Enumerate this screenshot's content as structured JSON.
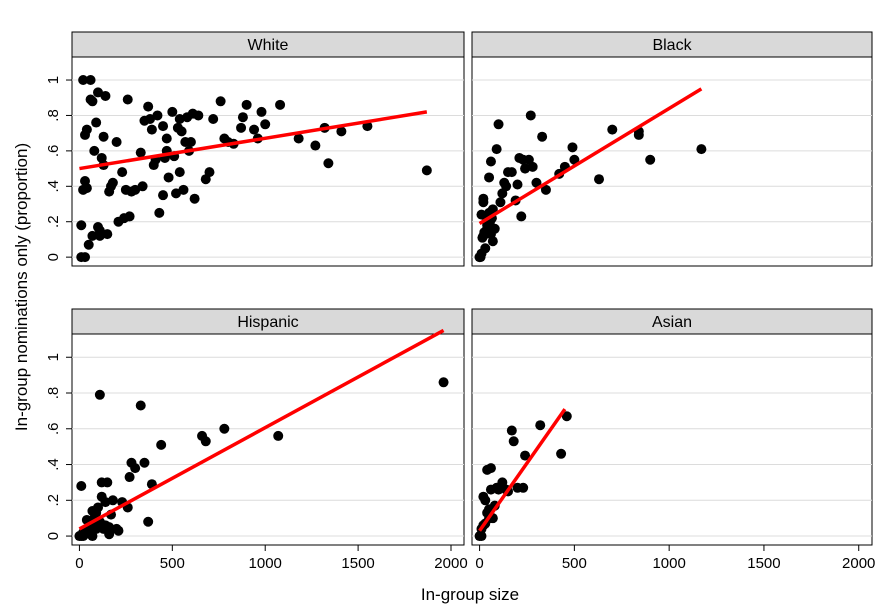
{
  "chart_data": {
    "type": "scatter",
    "xlabel": "In-group size",
    "ylabel": "In-group nominations only (proportion)",
    "xlim": [
      -40,
      2070
    ],
    "ylim": [
      -0.05,
      1.13
    ],
    "x_ticks": [
      0,
      500,
      1000,
      1500,
      2000
    ],
    "x_tick_labels": [
      "0",
      "500",
      "1000",
      "1500",
      "2000"
    ],
    "y_ticks": [
      0,
      0.2,
      0.4,
      0.6,
      0.8,
      1
    ],
    "y_tick_labels": [
      "0",
      ".2",
      ".4",
      ".6",
      ".8",
      "1"
    ],
    "grid": true,
    "colors": {
      "points": "#000000",
      "fit_line": "#ff0000",
      "strip": "#d9d9d9"
    },
    "panels": [
      {
        "title": "White",
        "fit_line": [
          [
            0,
            0.5
          ],
          [
            1870,
            0.82
          ]
        ],
        "points": [
          [
            20,
            1.0
          ],
          [
            60,
            1.0
          ],
          [
            10,
            0.0
          ],
          [
            30,
            0.0
          ],
          [
            10,
            0.18
          ],
          [
            20,
            0.38
          ],
          [
            30,
            0.43
          ],
          [
            40,
            0.39
          ],
          [
            50,
            0.07
          ],
          [
            70,
            0.12
          ],
          [
            100,
            0.17
          ],
          [
            110,
            0.15
          ],
          [
            110,
            0.12
          ],
          [
            130,
            0.52
          ],
          [
            150,
            0.13
          ],
          [
            160,
            0.37
          ],
          [
            170,
            0.4
          ],
          [
            180,
            0.42
          ],
          [
            200,
            0.65
          ],
          [
            210,
            0.2
          ],
          [
            230,
            0.48
          ],
          [
            240,
            0.22
          ],
          [
            250,
            0.38
          ],
          [
            270,
            0.23
          ],
          [
            280,
            0.37
          ],
          [
            300,
            0.38
          ],
          [
            330,
            0.59
          ],
          [
            340,
            0.4
          ],
          [
            370,
            0.85
          ],
          [
            380,
            0.78
          ],
          [
            390,
            0.72
          ],
          [
            400,
            0.52
          ],
          [
            410,
            0.55
          ],
          [
            420,
            0.8
          ],
          [
            430,
            0.25
          ],
          [
            450,
            0.35
          ],
          [
            450,
            0.74
          ],
          [
            460,
            0.56
          ],
          [
            470,
            0.6
          ],
          [
            480,
            0.45
          ],
          [
            500,
            0.82
          ],
          [
            510,
            0.57
          ],
          [
            520,
            0.36
          ],
          [
            530,
            0.73
          ],
          [
            540,
            0.78
          ],
          [
            550,
            0.71
          ],
          [
            560,
            0.38
          ],
          [
            570,
            0.65
          ],
          [
            580,
            0.79
          ],
          [
            600,
            0.65
          ],
          [
            610,
            0.81
          ],
          [
            620,
            0.33
          ],
          [
            640,
            0.8
          ],
          [
            680,
            0.44
          ],
          [
            700,
            0.48
          ],
          [
            720,
            0.78
          ],
          [
            760,
            0.88
          ],
          [
            780,
            0.67
          ],
          [
            800,
            0.65
          ],
          [
            830,
            0.64
          ],
          [
            870,
            0.73
          ],
          [
            880,
            0.79
          ],
          [
            900,
            0.86
          ],
          [
            940,
            0.72
          ],
          [
            960,
            0.67
          ],
          [
            980,
            0.82
          ],
          [
            1000,
            0.75
          ],
          [
            1080,
            0.86
          ],
          [
            1180,
            0.67
          ],
          [
            1270,
            0.63
          ],
          [
            1320,
            0.73
          ],
          [
            1340,
            0.53
          ],
          [
            1410,
            0.71
          ],
          [
            1550,
            0.74
          ],
          [
            1870,
            0.49
          ],
          [
            30,
            0.69
          ],
          [
            40,
            0.72
          ],
          [
            60,
            0.89
          ],
          [
            70,
            0.88
          ],
          [
            80,
            0.6
          ],
          [
            90,
            0.76
          ],
          [
            100,
            0.93
          ],
          [
            120,
            0.56
          ],
          [
            130,
            0.68
          ],
          [
            140,
            0.91
          ],
          [
            260,
            0.89
          ],
          [
            470,
            0.67
          ],
          [
            350,
            0.77
          ],
          [
            540,
            0.48
          ],
          [
            590,
            0.6
          ]
        ]
      },
      {
        "title": "Black",
        "fit_line": [
          [
            0,
            0.19
          ],
          [
            1170,
            0.95
          ]
        ],
        "points": [
          [
            0,
            0.0
          ],
          [
            10,
            0.02
          ],
          [
            10,
            0.24
          ],
          [
            20,
            0.31
          ],
          [
            20,
            0.33
          ],
          [
            20,
            0.12
          ],
          [
            30,
            0.05
          ],
          [
            40,
            0.18
          ],
          [
            40,
            0.21
          ],
          [
            50,
            0.45
          ],
          [
            50,
            0.25
          ],
          [
            60,
            0.54
          ],
          [
            60,
            0.13
          ],
          [
            70,
            0.27
          ],
          [
            70,
            0.09
          ],
          [
            80,
            0.16
          ],
          [
            90,
            0.61
          ],
          [
            100,
            0.75
          ],
          [
            110,
            0.31
          ],
          [
            120,
            0.36
          ],
          [
            130,
            0.42
          ],
          [
            140,
            0.4
          ],
          [
            150,
            0.48
          ],
          [
            170,
            0.48
          ],
          [
            190,
            0.32
          ],
          [
            200,
            0.41
          ],
          [
            210,
            0.56
          ],
          [
            220,
            0.23
          ],
          [
            230,
            0.55
          ],
          [
            240,
            0.5
          ],
          [
            260,
            0.55
          ],
          [
            270,
            0.8
          ],
          [
            280,
            0.51
          ],
          [
            300,
            0.42
          ],
          [
            330,
            0.68
          ],
          [
            350,
            0.38
          ],
          [
            420,
            0.47
          ],
          [
            450,
            0.51
          ],
          [
            490,
            0.62
          ],
          [
            500,
            0.55
          ],
          [
            630,
            0.44
          ],
          [
            700,
            0.72
          ],
          [
            840,
            0.69
          ],
          [
            840,
            0.71
          ],
          [
            900,
            0.55
          ],
          [
            1170,
            0.61
          ],
          [
            0,
            0.0
          ],
          [
            5,
            0.0
          ],
          [
            15,
            0.11
          ],
          [
            25,
            0.14
          ],
          [
            35,
            0.15
          ],
          [
            45,
            0.17
          ],
          [
            55,
            0.2
          ],
          [
            65,
            0.22
          ]
        ]
      },
      {
        "title": "Hispanic",
        "fit_line": [
          [
            0,
            0.04
          ],
          [
            1960,
            1.15
          ]
        ],
        "points": [
          [
            0,
            0.0
          ],
          [
            10,
            0.0
          ],
          [
            20,
            0.0
          ],
          [
            30,
            0.01
          ],
          [
            40,
            0.03
          ],
          [
            50,
            0.05
          ],
          [
            60,
            0.07
          ],
          [
            70,
            0.0
          ],
          [
            80,
            0.1
          ],
          [
            90,
            0.13
          ],
          [
            100,
            0.16
          ],
          [
            110,
            0.08
          ],
          [
            120,
            0.22
          ],
          [
            130,
            0.04
          ],
          [
            140,
            0.19
          ],
          [
            150,
            0.3
          ],
          [
            160,
            0.05
          ],
          [
            170,
            0.12
          ],
          [
            180,
            0.2
          ],
          [
            200,
            0.04
          ],
          [
            210,
            0.03
          ],
          [
            230,
            0.19
          ],
          [
            260,
            0.16
          ],
          [
            270,
            0.33
          ],
          [
            280,
            0.41
          ],
          [
            300,
            0.38
          ],
          [
            330,
            0.73
          ],
          [
            350,
            0.41
          ],
          [
            370,
            0.08
          ],
          [
            390,
            0.29
          ],
          [
            440,
            0.51
          ],
          [
            660,
            0.56
          ],
          [
            680,
            0.53
          ],
          [
            780,
            0.6
          ],
          [
            1070,
            0.56
          ],
          [
            1960,
            0.86
          ],
          [
            110,
            0.79
          ],
          [
            10,
            0.28
          ],
          [
            20,
            0.02
          ],
          [
            40,
            0.09
          ],
          [
            60,
            0.01
          ],
          [
            70,
            0.14
          ],
          [
            90,
            0.04
          ],
          [
            120,
            0.3
          ],
          [
            140,
            0.06
          ],
          [
            160,
            0.01
          ]
        ]
      },
      {
        "title": "Asian",
        "fit_line": [
          [
            0,
            0.03
          ],
          [
            450,
            0.71
          ]
        ],
        "points": [
          [
            0,
            0.0
          ],
          [
            10,
            0.0
          ],
          [
            10,
            0.04
          ],
          [
            20,
            0.06
          ],
          [
            20,
            0.22
          ],
          [
            30,
            0.07
          ],
          [
            30,
            0.2
          ],
          [
            40,
            0.13
          ],
          [
            40,
            0.37
          ],
          [
            50,
            0.15
          ],
          [
            50,
            0.1
          ],
          [
            60,
            0.26
          ],
          [
            60,
            0.38
          ],
          [
            70,
            0.1
          ],
          [
            80,
            0.17
          ],
          [
            90,
            0.27
          ],
          [
            100,
            0.26
          ],
          [
            120,
            0.3
          ],
          [
            140,
            0.26
          ],
          [
            150,
            0.25
          ],
          [
            170,
            0.59
          ],
          [
            180,
            0.53
          ],
          [
            200,
            0.27
          ],
          [
            230,
            0.27
          ],
          [
            240,
            0.45
          ],
          [
            320,
            0.62
          ],
          [
            430,
            0.46
          ],
          [
            460,
            0.67
          ]
        ]
      }
    ]
  }
}
